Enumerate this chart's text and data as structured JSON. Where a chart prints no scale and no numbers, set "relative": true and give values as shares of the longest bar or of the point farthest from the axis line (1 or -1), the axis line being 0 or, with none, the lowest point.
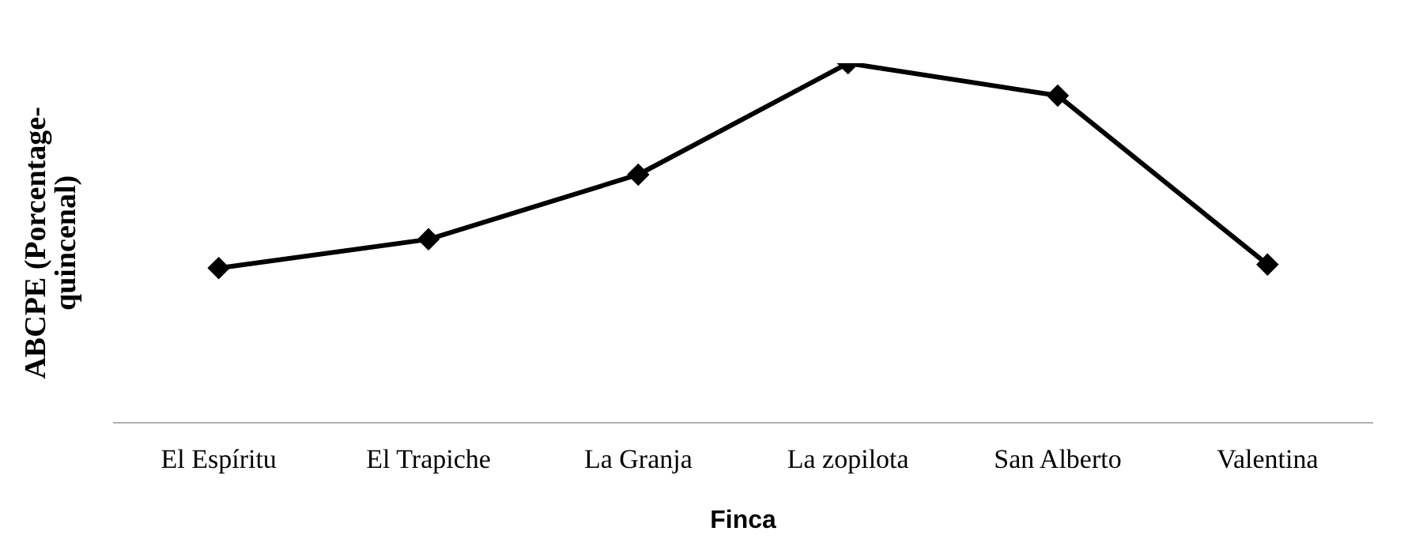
{
  "chart_data": {
    "type": "line",
    "relative": true,
    "xlabel": "Finca",
    "ylabel": "ABCPE (Porcentage-quincenal)",
    "categories": [
      "El Espíritu",
      "El Trapiche",
      "La Granja",
      "La zopilota",
      "San Alberto",
      "Valentina"
    ],
    "series": [
      {
        "color": "#000000",
        "values": [
          0.43,
          0.51,
          0.69,
          1,
          0.91,
          0.44
        ]
      }
    ],
    "marker": "diamond",
    "line_style": "solid",
    "grid": false,
    "legend": false
  }
}
